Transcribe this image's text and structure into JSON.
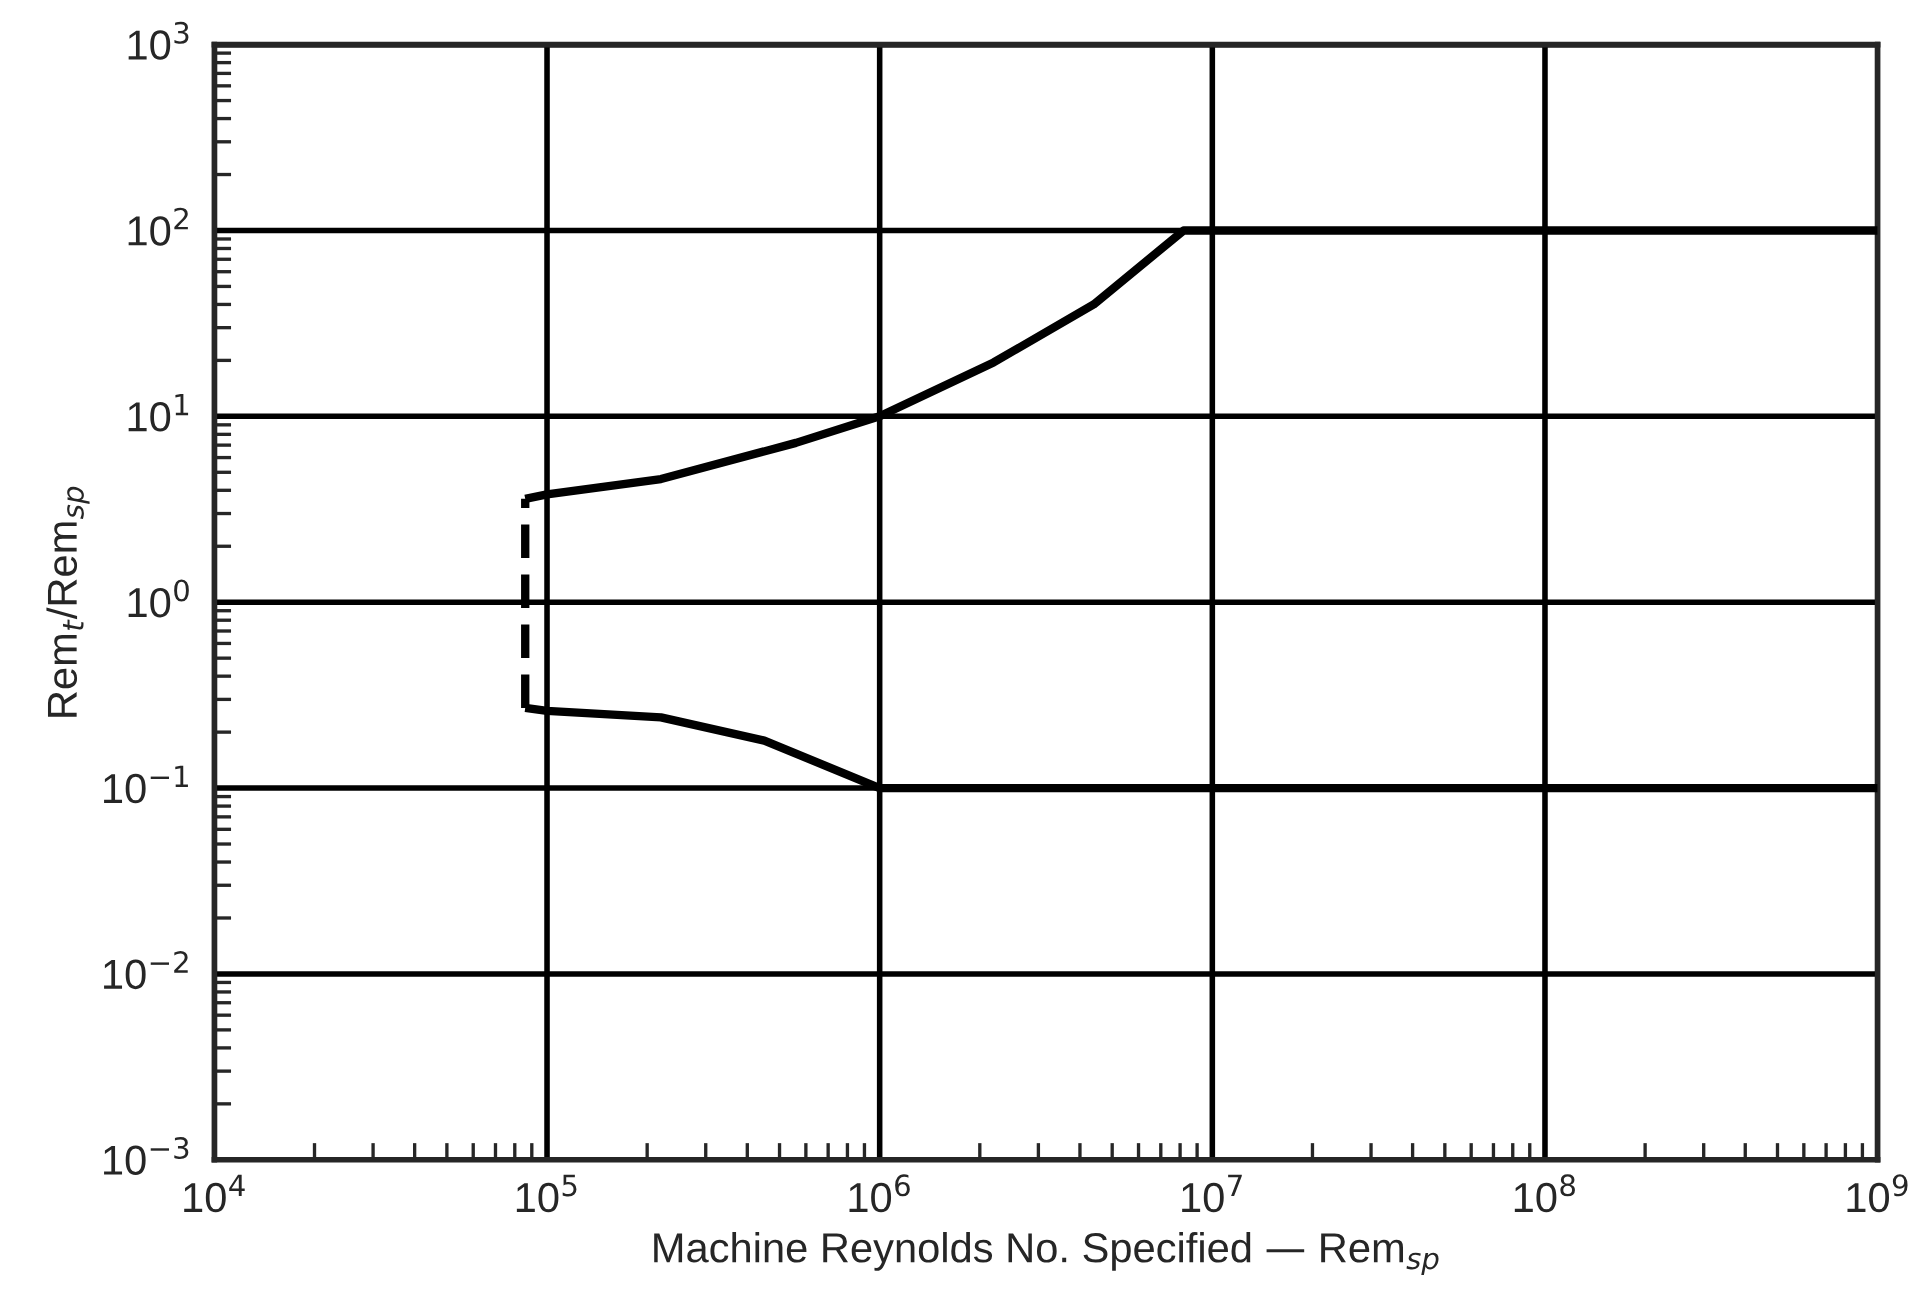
{
  "chart_data": {
    "type": "line",
    "xlabel": "Machine Reynolds No. Specified — Rem$_{sp}$",
    "ylabel": "Rem$_{t}$/Rem$_{sp}$",
    "log": "xy",
    "grid": true,
    "marker": "none",
    "xlim": [
      10000,
      1000000000
    ],
    "ylim": [
      0.001,
      1000
    ],
    "xticks": [
      {
        "value": 10000,
        "label": "10$^{4}$"
      },
      {
        "value": 100000,
        "label": "10$^{5}$"
      },
      {
        "value": 1000000,
        "label": "10$^{6}$"
      },
      {
        "value": 10000000,
        "label": "10$^{7}$"
      },
      {
        "value": 100000000,
        "label": "10$^{8}$"
      },
      {
        "value": 1000000000,
        "label": "10$^{9}$"
      }
    ],
    "yticks": [
      {
        "value": 0.001,
        "label": "10$^{−3}$"
      },
      {
        "value": 0.01,
        "label": "10$^{−2}$"
      },
      {
        "value": 0.1,
        "label": "10$^{−1}$"
      },
      {
        "value": 1,
        "label": "10$^{0}$"
      },
      {
        "value": 10,
        "label": "10$^{1}$"
      },
      {
        "value": 100,
        "label": "10$^{2}$"
      },
      {
        "value": 1000,
        "label": "10$^{3}$"
      }
    ],
    "series": [
      {
        "color": "#000000",
        "line_style": "solid",
        "x": [
          86000,
          100000,
          220000,
          560000,
          1000000,
          2200000,
          4400000,
          8200000,
          1000000000
        ],
        "values": [
          3.6,
          3.8,
          4.6,
          7.2,
          10,
          19.5,
          40,
          100,
          100
        ]
      },
      {
        "color": "#000000",
        "line_style": "solid",
        "x": [
          86000,
          100000,
          220000,
          450000,
          1000000,
          1000000000
        ],
        "values": [
          0.27,
          0.26,
          0.24,
          0.18,
          0.1,
          0.1
        ]
      },
      {
        "color": "#000000",
        "line_style": "dashed",
        "x": [
          86000,
          86000
        ],
        "values": [
          0.27,
          3.6
        ]
      }
    ]
  }
}
